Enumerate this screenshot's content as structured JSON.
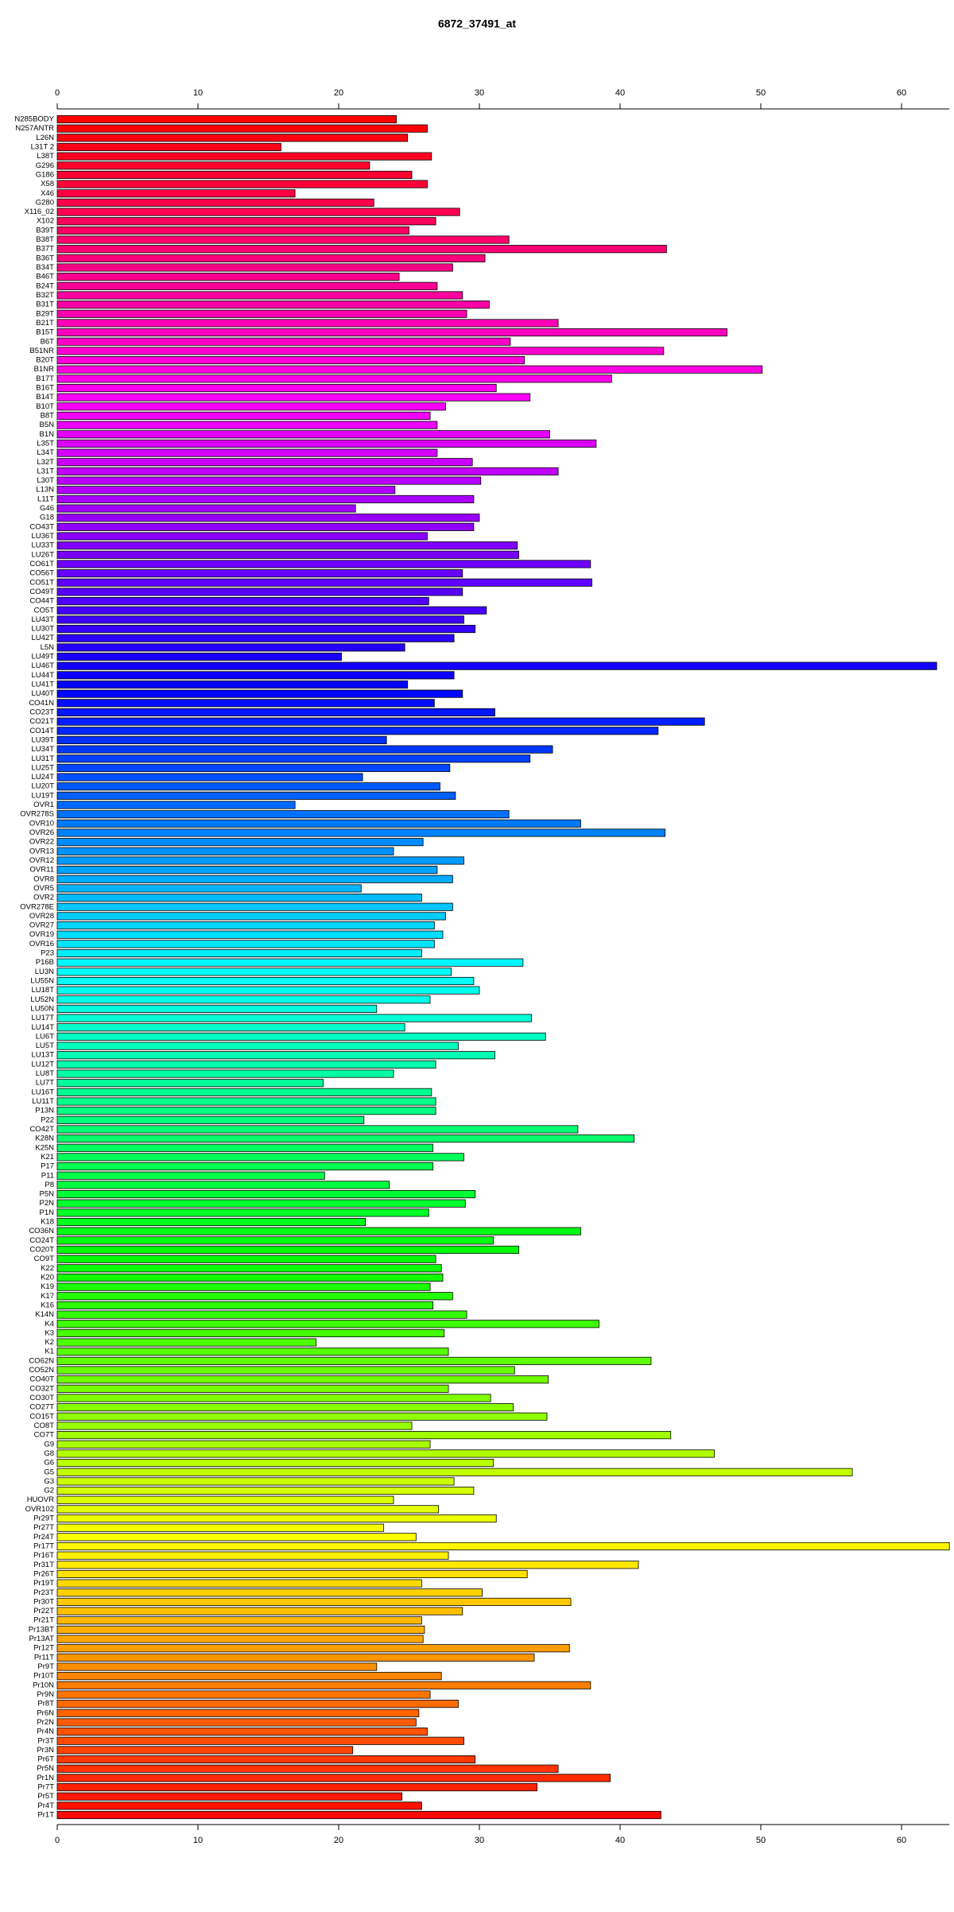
{
  "chart_data": {
    "type": "bar",
    "orientation": "horizontal",
    "title": "6872_37491_at",
    "categories": [
      "N285BODY",
      "N257ANTR",
      "L26N",
      "L31T 2",
      "L38T",
      "G296",
      "G186",
      "X58",
      "X46",
      "G280",
      "X116_02",
      "X102",
      "B39T",
      "B38T",
      "B37T",
      "B36T",
      "B34T",
      "B46T",
      "B24T",
      "B32T",
      "B31T",
      "B29T",
      "B21T",
      "B15T",
      "B6T",
      "B51NR",
      "B20T",
      "B1NR",
      "B17T",
      "B16T",
      "B14T",
      "B10T",
      "B8T",
      "B5N",
      "B1N",
      "L35T",
      "L34T",
      "L32T",
      "L31T",
      "L30T",
      "L13N",
      "L11T",
      "G46",
      "G18",
      "CO43T",
      "LU36T",
      "LU33T",
      "LU26T",
      "CO61T",
      "CO56T",
      "CO51T",
      "CO49T",
      "CO44T",
      "CO5T",
      "LU43T",
      "LU30T",
      "LU42T",
      "L5N",
      "LU49T",
      "LU46T",
      "LU44T",
      "LU41T",
      "LU40T",
      "CO41N",
      "CO23T",
      "CO21T",
      "CO14T",
      "LU39T",
      "LU34T",
      "LU31T",
      "LU25T",
      "LU24T",
      "LU20T",
      "LU19T",
      "OVR1",
      "OVR278S",
      "OVR10",
      "OVR26",
      "OVR22",
      "OVR13",
      "OVR12",
      "OVR11",
      "OVR8",
      "OVR5",
      "OVR2",
      "OVR278E",
      "OVR28",
      "OVR27",
      "OVR19",
      "OVR16",
      "P23",
      "P16B",
      "LU3N",
      "LU55N",
      "LU18T",
      "LU52N",
      "LU50N",
      "LU17T",
      "LU14T",
      "LU6T",
      "LU5T",
      "LU13T",
      "LU12T",
      "LU8T",
      "LU7T",
      "LU16T",
      "LU11T",
      "P13N",
      "P22",
      "CO42T",
      "K28N",
      "K25N",
      "K21",
      "P17",
      "P11",
      "P8",
      "P5N",
      "P2N",
      "P1N",
      "K18",
      "CO36N",
      "CO24T",
      "CO20T",
      "CO9T",
      "K22",
      "K20",
      "K19",
      "K17",
      "K16",
      "K14N",
      "K4",
      "K3",
      "K2",
      "K1",
      "CO62N",
      "CO52N",
      "CO40T",
      "CO32T",
      "CO30T",
      "CO27T",
      "CO15T",
      "CO8T",
      "CO7T",
      "G9",
      "G8",
      "G6",
      "G5",
      "G3",
      "G2",
      "HUOVR",
      "OVR102",
      "Pr29T",
      "Pr27T",
      "Pr24T",
      "Pr17T",
      "Pr16T",
      "Pr31T",
      "Pr26T",
      "Pr19T",
      "Pr23T",
      "Pr30T",
      "Pr22T",
      "Pr21T",
      "Pr13BT",
      "Pr13AT",
      "Pr12T",
      "Pr11T",
      "Pr9T",
      "Pr10T",
      "Pr10N",
      "Pr9N",
      "Pr8T",
      "Pr6N",
      "Pr2N",
      "Pr4N",
      "Pr3T",
      "Pr3N",
      "Pr6T",
      "Pr5N",
      "Pr1N",
      "Pr7T",
      "Pr5T",
      "Pr4T",
      "Pr1T"
    ],
    "values": [
      24.1,
      26.3,
      24.9,
      15.9,
      26.6,
      22.2,
      25.2,
      26.3,
      16.9,
      22.5,
      28.6,
      26.9,
      25.0,
      32.1,
      43.3,
      30.4,
      28.1,
      24.3,
      27.0,
      28.8,
      30.7,
      29.1,
      35.6,
      47.6,
      32.2,
      43.1,
      33.2,
      50.1,
      39.4,
      31.2,
      33.6,
      27.6,
      26.5,
      27.0,
      35.0,
      38.3,
      27.0,
      29.5,
      35.6,
      30.1,
      24.0,
      29.6,
      21.2,
      30.0,
      29.6,
      26.3,
      32.7,
      32.8,
      37.9,
      28.8,
      38.0,
      28.8,
      26.4,
      30.5,
      28.9,
      29.7,
      28.2,
      24.7,
      20.2,
      62.5,
      28.2,
      24.9,
      28.8,
      26.8,
      31.1,
      46.0,
      42.7,
      23.4,
      35.2,
      33.6,
      27.9,
      21.7,
      27.2,
      28.3,
      16.9,
      32.1,
      37.2,
      43.2,
      26.0,
      23.9,
      28.9,
      27.0,
      28.1,
      21.6,
      25.9,
      28.1,
      27.6,
      26.8,
      27.4,
      26.8,
      25.9,
      33.1,
      28.0,
      29.6,
      30.0,
      26.5,
      22.7,
      33.7,
      24.7,
      34.7,
      28.5,
      31.1,
      26.9,
      23.9,
      18.9,
      26.6,
      26.9,
      26.9,
      21.8,
      37.0,
      41.0,
      26.7,
      28.9,
      26.7,
      19.0,
      23.6,
      29.7,
      29.0,
      26.4,
      21.9,
      37.2,
      31.0,
      32.8,
      26.9,
      27.3,
      27.4,
      26.5,
      28.1,
      26.7,
      29.1,
      38.5,
      27.5,
      18.4,
      27.8,
      42.2,
      32.5,
      34.9,
      27.8,
      30.8,
      32.4,
      34.8,
      25.2,
      43.6,
      26.5,
      46.7,
      31.0,
      56.5,
      28.2,
      29.6,
      23.9,
      27.1,
      31.2,
      23.2,
      25.5,
      63.4,
      27.8,
      41.3,
      33.4,
      25.9,
      30.2,
      36.5,
      28.8,
      25.9,
      26.1,
      26.0,
      36.4,
      33.9,
      22.7,
      27.3,
      37.9,
      26.5,
      28.5,
      25.7,
      25.5,
      26.3,
      28.9,
      21.0,
      29.7,
      35.6,
      39.3,
      34.1,
      24.5,
      25.9,
      42.9
    ],
    "xlim": [
      0,
      63.4
    ],
    "xticks": [
      0,
      10,
      20,
      30,
      40,
      50,
      60
    ],
    "color_scale": "rainbow",
    "bar_outline": "#000000"
  }
}
